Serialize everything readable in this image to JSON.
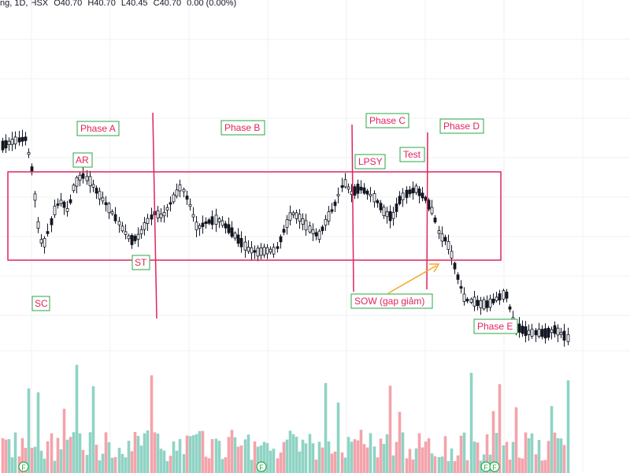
{
  "header": {
    "symbol_fragment": "ng, 1D, HSX",
    "open": "O40.70",
    "high": "H40.70",
    "low": "L40.45",
    "close": "C40.70",
    "change": "0.00 (0.00%)"
  },
  "colors": {
    "up": "#131722",
    "down": "#131722",
    "vol_up": "#8fd3c4",
    "vol_down": "#f4a3ab",
    "annotation": "#e0245e",
    "annotation_box": "#27a844",
    "arrow": "#f5a623",
    "grid": "#f0f2f5"
  },
  "chart_data": {
    "type": "candlestick",
    "grid": true,
    "annotations": {
      "phases": [
        "Phase A",
        "Phase B",
        "Phase C",
        "Phase D",
        "Phase E"
      ],
      "events": [
        "SC",
        "AR",
        "ST",
        "LPSY",
        "Test",
        "SOW (gap giảm)"
      ]
    },
    "volume_markers": [
      "F",
      "F",
      "F",
      "F"
    ]
  }
}
